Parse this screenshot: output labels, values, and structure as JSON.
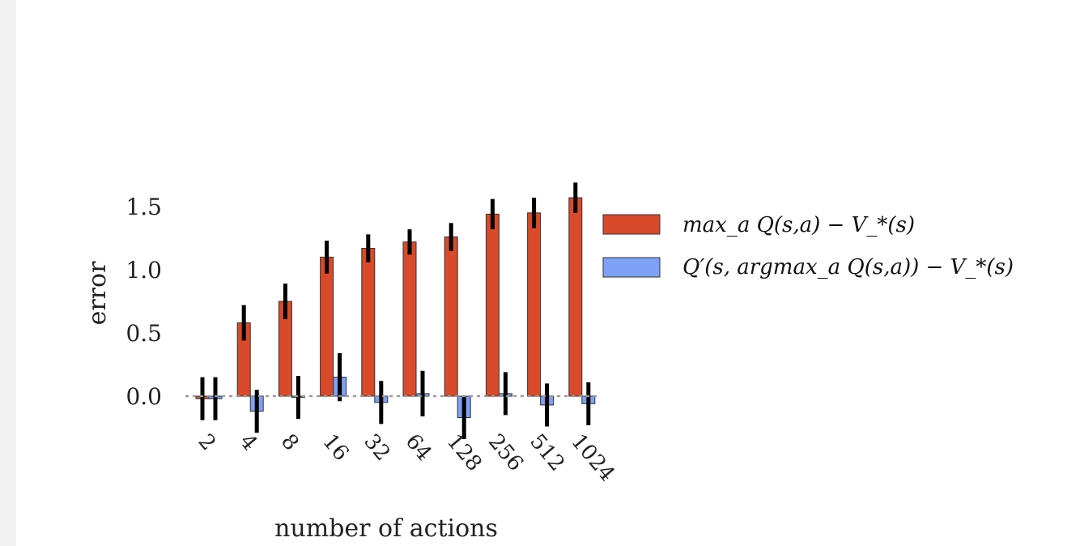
{
  "chart_data": {
    "type": "bar",
    "xlabel": "number of actions",
    "ylabel": "error",
    "categories": [
      "2",
      "4",
      "8",
      "16",
      "32",
      "64",
      "128",
      "256",
      "512",
      "1024"
    ],
    "yticks": [
      "0.0",
      "0.5",
      "1.0",
      "1.5"
    ],
    "ytick_values": [
      0.0,
      0.5,
      1.0,
      1.5
    ],
    "ylim": [
      -0.18,
      1.72
    ],
    "reference_line": 0.0,
    "grid": false,
    "legend_position": "right",
    "series": [
      {
        "name": "max_a Q(s,a) − V_*(s)",
        "color": "#d84a2a",
        "values": [
          -0.02,
          0.58,
          0.75,
          1.1,
          1.17,
          1.22,
          1.26,
          1.44,
          1.45,
          1.57
        ],
        "error": [
          0.17,
          0.14,
          0.14,
          0.13,
          0.11,
          0.1,
          0.11,
          0.12,
          0.12,
          0.12
        ]
      },
      {
        "name": "Q′(s, argmax_a Q(s,a)) − V_*(s)",
        "color": "#7da1f5",
        "values": [
          -0.02,
          -0.12,
          -0.01,
          0.15,
          -0.05,
          0.02,
          -0.17,
          0.02,
          -0.07,
          -0.06
        ],
        "error": [
          0.17,
          0.17,
          0.17,
          0.19,
          0.17,
          0.18,
          0.17,
          0.17,
          0.17,
          0.17
        ]
      }
    ]
  }
}
